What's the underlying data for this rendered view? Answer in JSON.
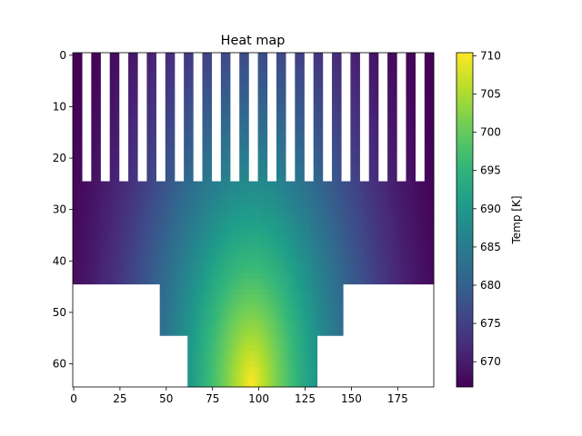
{
  "chart_data": {
    "type": "heatmap",
    "title": "Heat map",
    "xlabel": "",
    "ylabel": "",
    "xlim": [
      -0.5,
      194.5
    ],
    "ylim_inverted": [
      -0.5,
      64.5
    ],
    "x_ticks": [
      0,
      25,
      50,
      75,
      100,
      125,
      150,
      175
    ],
    "y_ticks": [
      0,
      10,
      20,
      30,
      40,
      50,
      60
    ],
    "colorbar": {
      "label": "Temp [K]",
      "min": 666.7,
      "max": 710.4,
      "ticks": [
        670,
        675,
        680,
        685,
        690,
        695,
        700,
        705,
        710
      ],
      "colormap": "viridis"
    },
    "grid": false,
    "field": {
      "fins": {
        "rows": [
          0,
          24
        ],
        "x_start": 0,
        "pitch": 10,
        "fin_width": 5
      },
      "base": {
        "rows": [
          25,
          44
        ],
        "cols": [
          0,
          194
        ]
      },
      "step1": {
        "rows": [
          45,
          54
        ],
        "cols": [
          47,
          145
        ]
      },
      "step2": {
        "rows": [
          55,
          64
        ],
        "cols": [
          62,
          131
        ]
      },
      "hot_spot": {
        "x": 96,
        "y": 64,
        "temp": 710.4
      },
      "coldest_temp": 666.7
    }
  }
}
